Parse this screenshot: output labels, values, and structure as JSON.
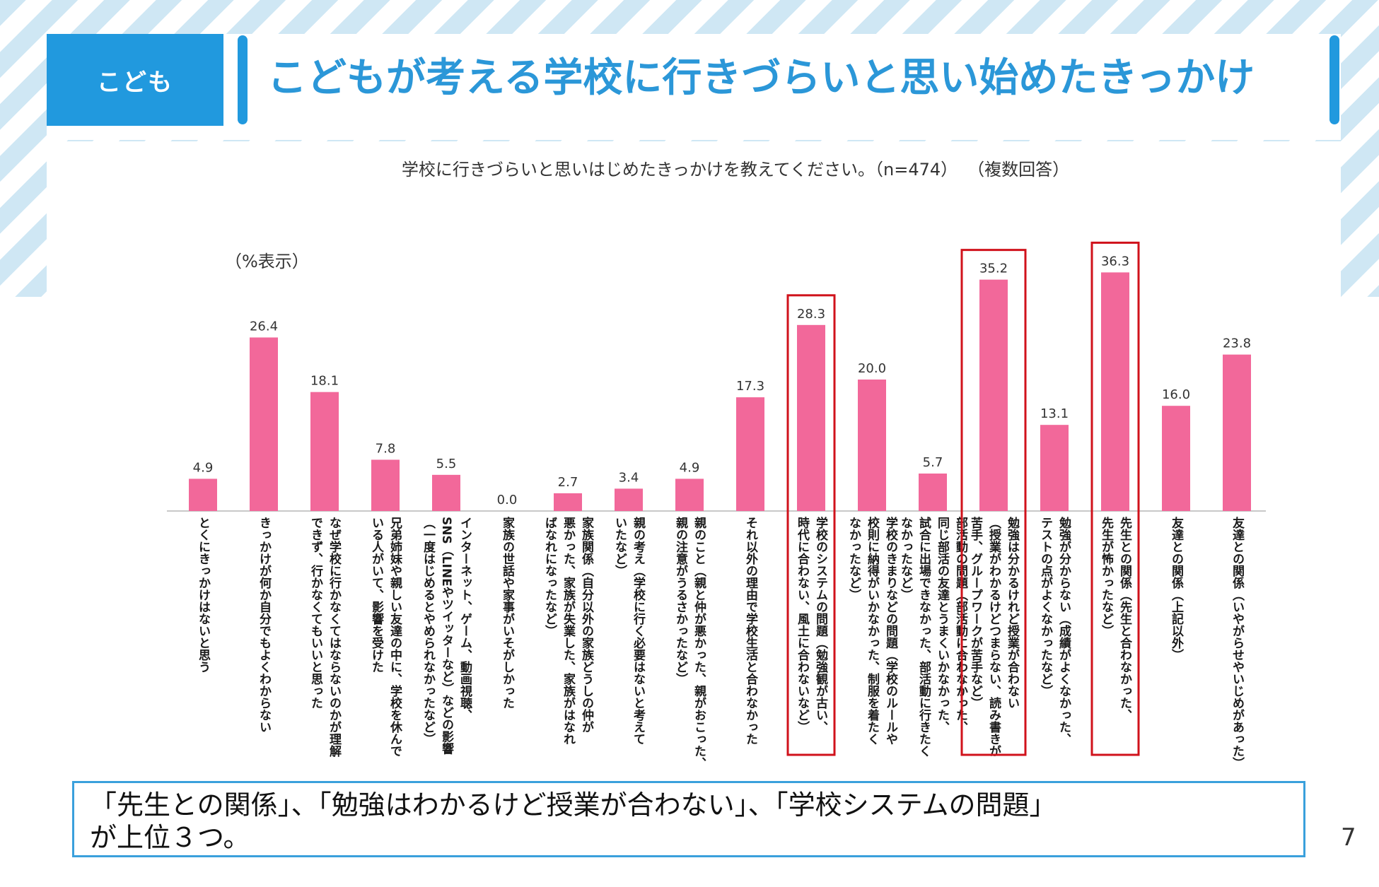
{
  "slide": {
    "tag": "こども",
    "title": "こどもが考える学校に行きづらいと思い始めたきっかけ",
    "question": "学校に行きづらいと思いはじめたきっかけを教えてください。（n=474）",
    "multiple": "（複数回答）",
    "unit": "（%表示）",
    "summary": "「先生との関係」、「勉強はわかるけど授業が合わない」、「学校システムの問題」\nが上位３つ。",
    "page_number": "7"
  },
  "colors": {
    "bar": "#f2689a",
    "highlight": "#d0121b",
    "accent": "#2199de"
  },
  "chart_data": {
    "type": "bar",
    "title": "学校に行きづらいと思いはじめたきっかけを教えてください。（n=474）",
    "ylabel": "（%表示）",
    "ylim": [
      0,
      40
    ],
    "value_labels": [
      "4.9",
      "26.4",
      "18.1",
      "7.8",
      "5.5",
      "0.0",
      "2.7",
      "3.4",
      "4.9",
      "17.3",
      "28.3",
      "20.0",
      "5.7",
      "35.2",
      "13.1",
      "36.3",
      "16.0",
      "23.8"
    ],
    "values": [
      4.9,
      26.4,
      18.1,
      7.8,
      5.5,
      0.0,
      2.7,
      3.4,
      4.9,
      17.3,
      28.3,
      20.0,
      5.7,
      35.2,
      13.1,
      36.3,
      16.0,
      23.8
    ],
    "highlighted": [
      10,
      13,
      15
    ],
    "categories": [
      [
        "とくにきっかけはないと思う"
      ],
      [
        "きっかけが何か自分でもよくわからない"
      ],
      [
        "なぜ学校に行かなくてはならないのかが理解",
        "できず、行かなくてもいいと思った"
      ],
      [
        "兄弟姉妹や親しい友達の中に、学校を休んで",
        "いる人がいて、影響を受けた"
      ],
      [
        "インターネット、ゲーム、動画視聴、",
        "SNS（LINEやツイッターなど）などの影響",
        "（一度はじめるとやめられなかったなど）"
      ],
      [
        "家族の世話や家事がいそがしかった"
      ],
      [
        "家族関係（自分以外の家族どうしの仲が",
        "悪かった、家族が失業した、家族がはなれ",
        "ばなれになったなど）"
      ],
      [
        "親の考え（学校に行く必要はないと考えて",
        "いたなど）"
      ],
      [
        "親のこと（親と仲が悪かった、親がおこった、",
        "親の注意がうるさかったなど）"
      ],
      [
        "それ以外の理由で学校生活と合わなかった"
      ],
      [
        "学校のシステムの問題（勉強観が古い、",
        "時代に合わない、風土に合わないなど）"
      ],
      [
        "学校のきまりなどの問題（学校のルールや",
        "校則に納得がいかなかった、制服を着たく",
        "なかったなど）"
      ],
      [
        "部活動の問題（部活動に合わなかった、",
        "同じ部活の友達とうまくいかなかった、",
        "試合に出場できなかった、部活動に行きたく",
        "なかったなど）"
      ],
      [
        "勉強は分かるけれど授業が合わない",
        "（授業がわかるけどつまらない、読み書きが",
        "苦手、グループワークが苦手など）"
      ],
      [
        "勉強が分からない（成績がよくなかった、",
        "テストの点がよくなかったなど）"
      ],
      [
        "先生との関係（先生と合わなかった、",
        "先生が怖かったなど）"
      ],
      [
        "友達との関係（上記以外）"
      ],
      [
        "友達との関係（いやがらせやいじめがあった）"
      ]
    ]
  }
}
